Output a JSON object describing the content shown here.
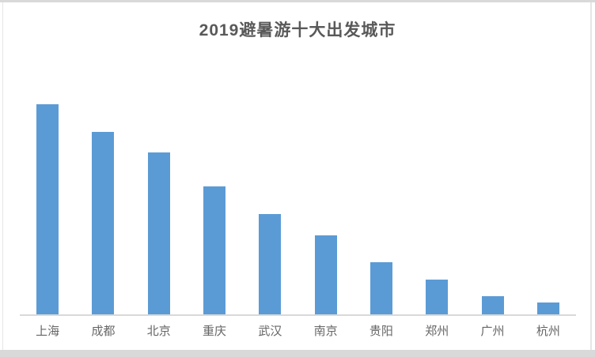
{
  "chart": {
    "title": "2019避暑游十大出发城市"
  },
  "colors": {
    "bar": "#5b9bd5",
    "title_text": "#595959",
    "axis_label_text": "#666666",
    "axis_line": "#d9d9d9",
    "frame": "#d9d9d9"
  },
  "chart_data": {
    "type": "bar",
    "title": "2019避暑游十大出发城市",
    "categories": [
      "上海",
      "成都",
      "北京",
      "重庆",
      "武汉",
      "南京",
      "贵阳",
      "郑州",
      "广州",
      "杭州"
    ],
    "values": [
      100,
      87,
      77,
      61,
      48,
      38,
      25,
      17,
      9,
      6
    ],
    "xlabel": "",
    "ylabel": "",
    "value_axis_visible": false,
    "value_units": "relative bar height, max bar = 100 (no value axis or data labels shown)",
    "gridlines": false,
    "legend": "none",
    "bar_color": "#5b9bd5",
    "orientation": "vertical",
    "sorted": "descending"
  }
}
